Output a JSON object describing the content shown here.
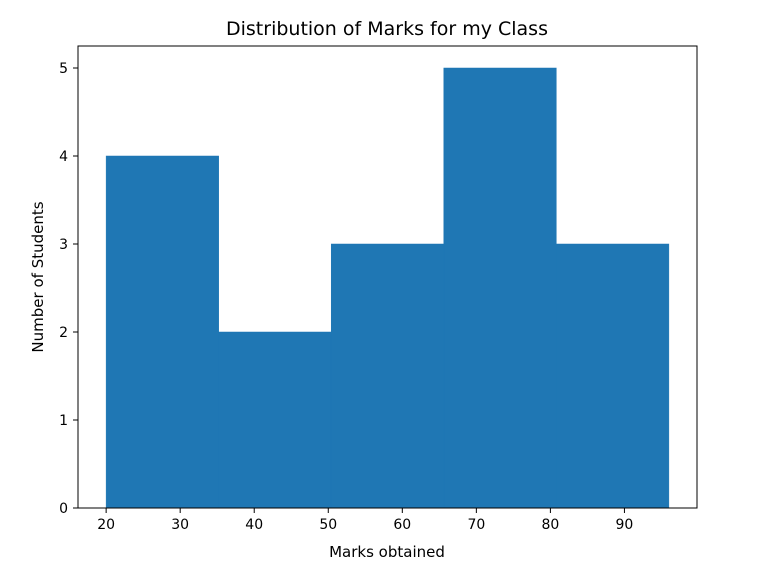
{
  "chart_data": {
    "type": "bar",
    "title": "Distribution of Marks for my Class",
    "xlabel": "Marks obtained",
    "ylabel": "Number of Students",
    "bins": [
      {
        "start": 20.0,
        "end": 35.2,
        "count": 4
      },
      {
        "start": 35.2,
        "end": 50.4,
        "count": 2
      },
      {
        "start": 50.4,
        "end": 65.6,
        "count": 3
      },
      {
        "start": 65.6,
        "end": 80.8,
        "count": 5
      },
      {
        "start": 80.8,
        "end": 96.0,
        "count": 3
      }
    ],
    "xlim": [
      16.2,
      99.8
    ],
    "ylim": [
      0,
      5.25
    ],
    "xticks": [
      "20",
      "30",
      "40",
      "50",
      "60",
      "70",
      "80",
      "90"
    ],
    "yticks": [
      "0",
      "1",
      "2",
      "3",
      "4",
      "5"
    ],
    "grid": false,
    "bar_color": "#1f77b4",
    "edge_color": "#1f77b4"
  }
}
